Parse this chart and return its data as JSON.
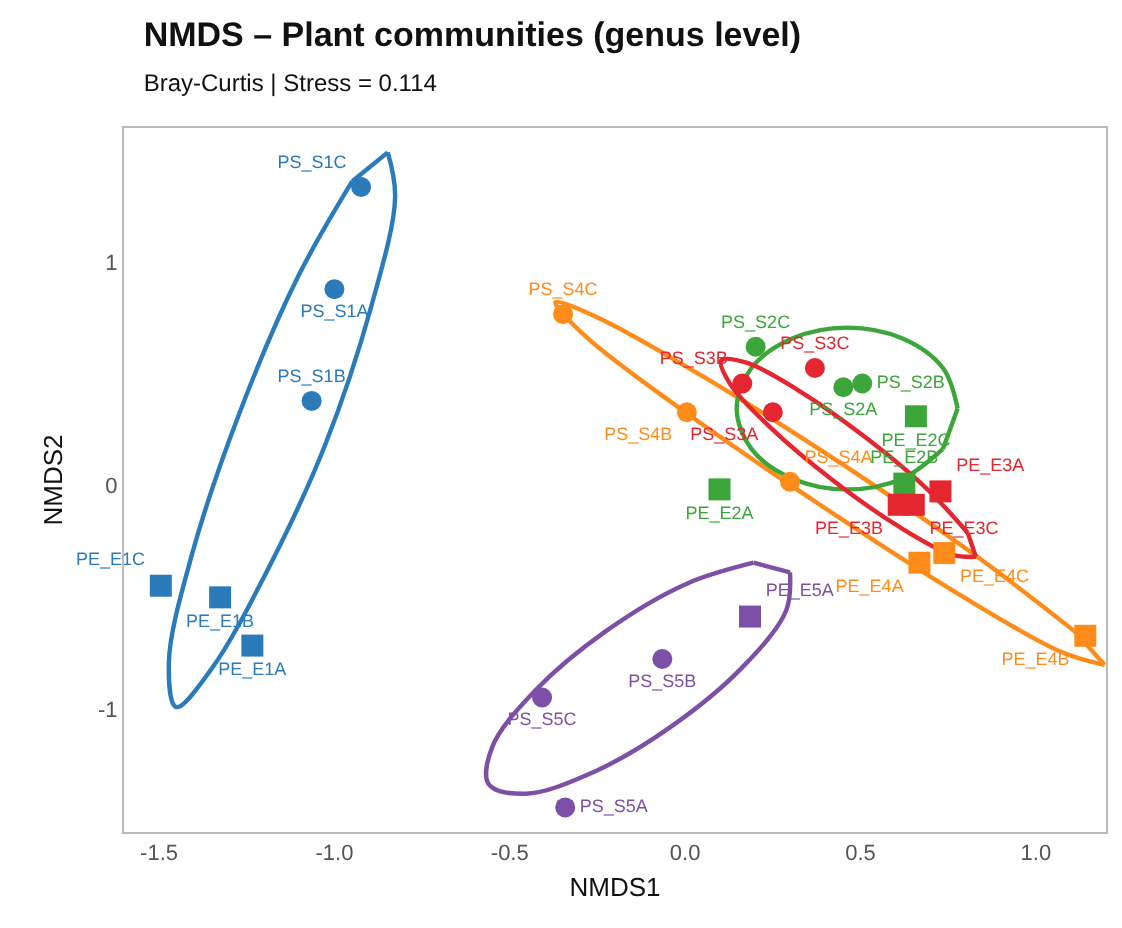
{
  "chart_data": {
    "type": "scatter",
    "title": "NMDS – Plant communities (genus level)",
    "subtitle": "Bray-Curtis | Stress = 0.114",
    "xlabel": "NMDS1",
    "ylabel": "NMDS2",
    "xlim": [
      -1.6,
      1.2
    ],
    "ylim": [
      -1.55,
      1.6
    ],
    "xticks": [
      -1.5,
      {
        "value": -1,
        "label": "-1.0"
      },
      -0.5,
      {
        "value": 0,
        "label": "0.0"
      },
      0.5,
      {
        "value": 1,
        "label": "1.0"
      }
    ],
    "yticks": [
      -1,
      0,
      1
    ],
    "grid": false,
    "series": [
      {
        "type": "line",
        "marker": "none",
        "color": "#2b7bba",
        "x": [
          -0.848,
          -0.827,
          -0.894,
          -1.028,
          -1.195,
          -1.35,
          -1.451,
          -1.472,
          -1.406,
          -1.271,
          -1.104,
          -0.949
        ],
        "values": [
          1.491,
          1.288,
          0.807,
          0.176,
          -0.391,
          -0.819,
          -0.991,
          -0.788,
          -0.307,
          0.324,
          0.934,
          1.362
        ]
      },
      {
        "type": "line",
        "marker": "none",
        "color": "#ff8c1a",
        "x": [
          1.196,
          1.073,
          0.774,
          0.377,
          -0.009,
          -0.283,
          -0.37,
          -0.247,
          0.053,
          0.449,
          0.835,
          1.109
        ],
        "values": [
          -0.802,
          -0.745,
          -0.48,
          -0.078,
          0.339,
          0.667,
          0.819,
          0.75,
          0.486,
          0.095,
          -0.321,
          -0.65
        ]
      },
      {
        "type": "line",
        "marker": "none",
        "color": "#3ca63a",
        "x": [
          0.777,
          0.735,
          0.62,
          0.462,
          0.305,
          0.189,
          0.147,
          0.189,
          0.305,
          0.462,
          0.62,
          0.735
        ],
        "values": [
          0.345,
          0.526,
          0.658,
          0.707,
          0.658,
          0.526,
          0.345,
          0.164,
          0.032,
          -0.017,
          0.032,
          0.164
        ]
      },
      {
        "type": "line",
        "marker": "none",
        "color": "#e3262f",
        "x": [
          0.829,
          0.76,
          0.609,
          0.421,
          0.245,
          0.129,
          0.103,
          0.175,
          0.325,
          0.513,
          0.69,
          0.806
        ],
        "values": [
          -0.319,
          -0.309,
          -0.183,
          0.024,
          0.257,
          0.453,
          0.56,
          0.55,
          0.424,
          0.217,
          -0.016,
          -0.212
        ]
      },
      {
        "type": "line",
        "marker": "none",
        "color": "#7d4fa6",
        "x": [
          0.299,
          0.288,
          0.165,
          -0.037,
          -0.264,
          -0.455,
          -0.56,
          -0.549,
          -0.426,
          -0.224,
          0.003,
          0.195
        ],
        "values": [
          -0.388,
          -0.559,
          -0.81,
          -1.075,
          -1.284,
          -1.379,
          -1.336,
          -1.166,
          -0.915,
          -0.649,
          -0.44,
          -0.345
        ]
      },
      {
        "type": "scatter",
        "marker": "circle",
        "color": "#2b7bba",
        "x": [
          -0.924,
          -1.0,
          -1.065
        ],
        "values": [
          1.336,
          0.879,
          0.379
        ],
        "value_labels": [
          "PS_S1C",
          "PS_S1A",
          "PS_S1B"
        ]
      },
      {
        "type": "scatter",
        "marker": "square",
        "color": "#2b7bba",
        "x": [
          -1.495,
          -1.326,
          -1.234
        ],
        "values": [
          -0.448,
          -0.5,
          -0.716
        ],
        "value_labels": [
          "PE_E1C",
          "PE_E1B",
          "PE_E1A"
        ]
      },
      {
        "type": "scatter",
        "marker": "circle",
        "color": "#ff8c1a",
        "x": [
          -0.348,
          0.005,
          0.299
        ],
        "values": [
          0.767,
          0.328,
          0.017
        ],
        "value_labels": [
          "PS_S4C",
          "PS_S4B",
          "PS_S4A"
        ]
      },
      {
        "type": "scatter",
        "marker": "square",
        "color": "#ff8c1a",
        "x": [
          0.668,
          0.739,
          1.141
        ],
        "values": [
          -0.345,
          -0.302,
          -0.672
        ],
        "value_labels": [
          "PE_E4A",
          "PE_E4C",
          "PE_E4B"
        ]
      },
      {
        "type": "scatter",
        "marker": "circle",
        "color": "#3ca63a",
        "x": [
          0.201,
          0.505,
          0.451
        ],
        "values": [
          0.621,
          0.457,
          0.44
        ],
        "value_labels": [
          "PS_S2C",
          "PS_S2B",
          "PS_S2A"
        ]
      },
      {
        "type": "scatter",
        "marker": "square",
        "color": "#3ca63a",
        "x": [
          0.658,
          0.625,
          0.098
        ],
        "values": [
          0.31,
          0.009,
          -0.017
        ],
        "value_labels": [
          "PE_E2C",
          "PE_E2B",
          "PE_E2A"
        ]
      },
      {
        "type": "scatter",
        "marker": "circle",
        "color": "#e3262f",
        "x": [
          0.37,
          0.163,
          0.25
        ],
        "values": [
          0.526,
          0.457,
          0.328
        ],
        "value_labels": [
          "PS_S3C",
          "PS_S3B",
          "PS_S3A"
        ]
      },
      {
        "type": "scatter",
        "marker": "square",
        "color": "#e3262f",
        "x": [
          0.728,
          0.652,
          0.609
        ],
        "values": [
          -0.026,
          -0.086,
          -0.086
        ],
        "value_labels": [
          "PE_E3A",
          "PE_E3C",
          "PE_E3B"
        ]
      },
      {
        "type": "scatter",
        "marker": "circle",
        "color": "#7d4fa6",
        "x": [
          -0.065,
          -0.408,
          -0.342
        ],
        "values": [
          -0.776,
          -0.948,
          -1.44
        ],
        "value_labels": [
          "PS_S5B",
          "PS_S5C",
          "PS_S5A"
        ]
      },
      {
        "type": "scatter",
        "marker": "square",
        "color": "#7d4fa6",
        "x": [
          0.185
        ],
        "values": [
          -0.586
        ],
        "value_labels": [
          "PE_E5A"
        ]
      }
    ]
  }
}
